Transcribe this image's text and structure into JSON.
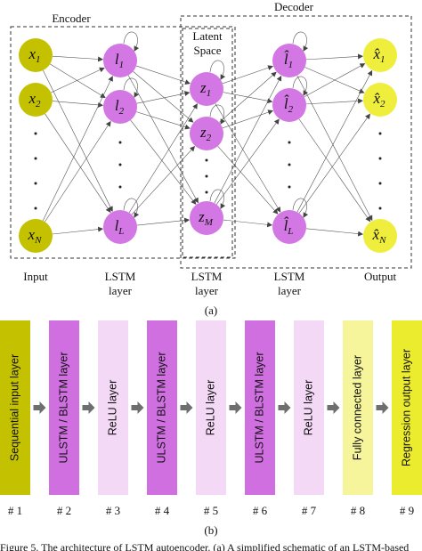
{
  "panel_a": {
    "encoder_label": "Encoder",
    "decoder_label": "Decoder",
    "latent_label": [
      "Latent",
      "Space"
    ],
    "columns": [
      {
        "nodes": [
          {
            "base": "x",
            "sub": "1"
          },
          {
            "base": "x",
            "sub": "2"
          },
          {
            "base": "x",
            "sub": "N"
          }
        ],
        "label": [
          "Input"
        ]
      },
      {
        "nodes": [
          {
            "base": "l",
            "sub": "1"
          },
          {
            "base": "l",
            "sub": "2"
          },
          {
            "base": "l",
            "sub": "L"
          }
        ],
        "label": [
          "LSTM",
          "layer"
        ]
      },
      {
        "nodes": [
          {
            "base": "z",
            "sub": "1"
          },
          {
            "base": "z",
            "sub": "2"
          },
          {
            "base": "z",
            "sub": "M"
          }
        ],
        "label": [
          "LSTM",
          "layer"
        ]
      },
      {
        "nodes": [
          {
            "base": "l̂",
            "sub": "1"
          },
          {
            "base": "l̂",
            "sub": "2"
          },
          {
            "base": "l̂",
            "sub": "L"
          }
        ],
        "label": [
          "LSTM",
          "layer"
        ]
      },
      {
        "nodes": [
          {
            "base": "x̂",
            "sub": "1"
          },
          {
            "base": "x̂",
            "sub": "2"
          },
          {
            "base": "x̂",
            "sub": "N"
          }
        ],
        "label": [
          "Output"
        ]
      }
    ],
    "caption": "(a)"
  },
  "panel_b": {
    "layers": [
      {
        "name": "Sequential input layer",
        "number": "# 1"
      },
      {
        "name": "ULSTM / BLSTM layer",
        "number": "# 2"
      },
      {
        "name": "ReLU layer",
        "number": "# 3"
      },
      {
        "name": "ULSTM / BLSTM layer",
        "number": "# 4"
      },
      {
        "name": "ReLU layer",
        "number": "# 5"
      },
      {
        "name": "ULSTM / BLSTM layer",
        "number": "# 6"
      },
      {
        "name": "ReLU layer",
        "number": "# 7"
      },
      {
        "name": "Fully connected layer",
        "number": "# 8"
      },
      {
        "name": "Regression output layer",
        "number": "# 9"
      }
    ],
    "caption": "(b)"
  },
  "figure_caption": "Figure 5. The architecture of LSTM autoencoder. (a) A simplified schematic of an LSTM-based"
}
